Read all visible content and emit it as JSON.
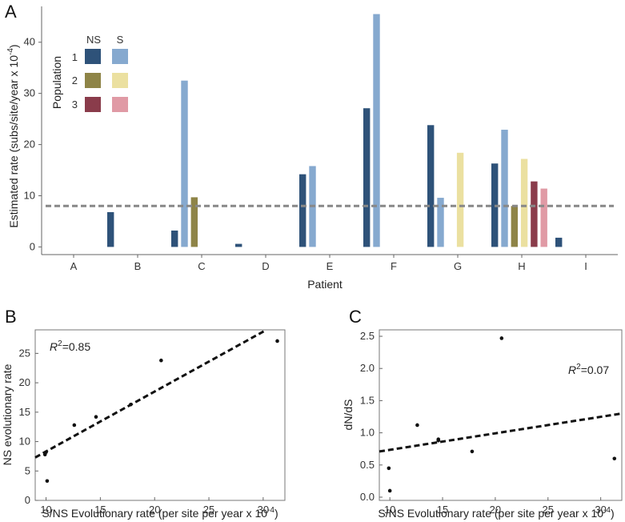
{
  "colors": {
    "pop1_ns": "#2e5279",
    "pop1_s": "#86a9cf",
    "pop2_ns": "#8e8447",
    "pop2_s": "#ebe0a0",
    "pop3_ns": "#8a3c4b",
    "pop3_s": "#e09aa5",
    "ref_line": "#888888",
    "fit_line": "#111111"
  },
  "chart_data": [
    {
      "panel": "A",
      "type": "bar",
      "xlabel": "Patient",
      "ylabel": "Estimated rate (subs/site/year x 10",
      "ylabel_exp": "-4",
      "ylabel_tail": ")",
      "ylim": [
        -1.5,
        47
      ],
      "yticks": [
        0,
        10,
        20,
        30,
        40
      ],
      "categories": [
        "A",
        "B",
        "C",
        "D",
        "E",
        "F",
        "G",
        "H",
        "I"
      ],
      "reference_line": 8,
      "legend": {
        "title": "Population",
        "col_ns": "NS",
        "col_s": "S",
        "rows": [
          "1",
          "2",
          "3"
        ]
      },
      "series": [
        {
          "name": "Population 1 NS",
          "values": [
            null,
            6.8,
            3.2,
            0.6,
            14.2,
            27.1,
            23.8,
            16.3,
            1.8
          ]
        },
        {
          "name": "Population 1 S",
          "values": [
            null,
            null,
            32.5,
            null,
            15.8,
            45.5,
            9.6,
            22.9,
            null
          ]
        },
        {
          "name": "Population 2 NS",
          "values": [
            null,
            null,
            9.7,
            null,
            null,
            null,
            null,
            8.0,
            null
          ]
        },
        {
          "name": "Population 2 S",
          "values": [
            null,
            null,
            null,
            null,
            null,
            null,
            18.4,
            17.2,
            null
          ]
        },
        {
          "name": "Population 3 NS",
          "values": [
            null,
            null,
            null,
            null,
            null,
            null,
            null,
            12.8,
            null
          ]
        },
        {
          "name": "Population 3 S",
          "values": [
            null,
            null,
            null,
            null,
            null,
            null,
            null,
            11.4,
            null
          ]
        }
      ]
    },
    {
      "panel": "B",
      "type": "scatter",
      "xlabel": "S/NS Evolutionary rate (per site per year x 10",
      "xlabel_exp": "-4",
      "xlabel_tail": ")",
      "ylabel": "NS evolutionary rate",
      "xlim": [
        9,
        32
      ],
      "ylim": [
        0,
        29
      ],
      "xticks": [
        10,
        15,
        20,
        25,
        30
      ],
      "yticks": [
        0,
        5,
        10,
        15,
        20,
        25
      ],
      "r2_text": "R",
      "r2_sup": "2",
      "r2_value": "=0.85",
      "points": [
        [
          9.9,
          7.8
        ],
        [
          10.0,
          8.2
        ],
        [
          10.1,
          3.3
        ],
        [
          12.6,
          12.8
        ],
        [
          14.6,
          14.2
        ],
        [
          17.8,
          16.3
        ],
        [
          20.6,
          23.8
        ],
        [
          31.3,
          27.1
        ]
      ],
      "fit": {
        "x": [
          9,
          30.3
        ],
        "y": [
          7.3,
          29
        ]
      }
    },
    {
      "panel": "C",
      "type": "scatter",
      "xlabel": "S/NS Evolutionary rate (per site per year x 10",
      "xlabel_exp": "-4",
      "xlabel_tail": ")",
      "ylabel": "dN/dS",
      "xlim": [
        9,
        32
      ],
      "ylim": [
        -0.05,
        2.6
      ],
      "xticks": [
        10,
        15,
        20,
        25,
        30
      ],
      "yticks": [
        0.0,
        0.5,
        1.0,
        1.5,
        2.0,
        2.5
      ],
      "r2_text": "R",
      "r2_sup": "2",
      "r2_value": "=0.07",
      "points": [
        [
          9.9,
          0.45
        ],
        [
          10.0,
          0.1
        ],
        [
          12.6,
          1.12
        ],
        [
          14.6,
          0.88
        ],
        [
          14.6,
          0.9
        ],
        [
          17.8,
          0.71
        ],
        [
          20.6,
          2.47
        ],
        [
          31.3,
          0.6
        ]
      ],
      "fit": {
        "x": [
          9,
          32
        ],
        "y": [
          0.71,
          1.3
        ]
      }
    }
  ]
}
